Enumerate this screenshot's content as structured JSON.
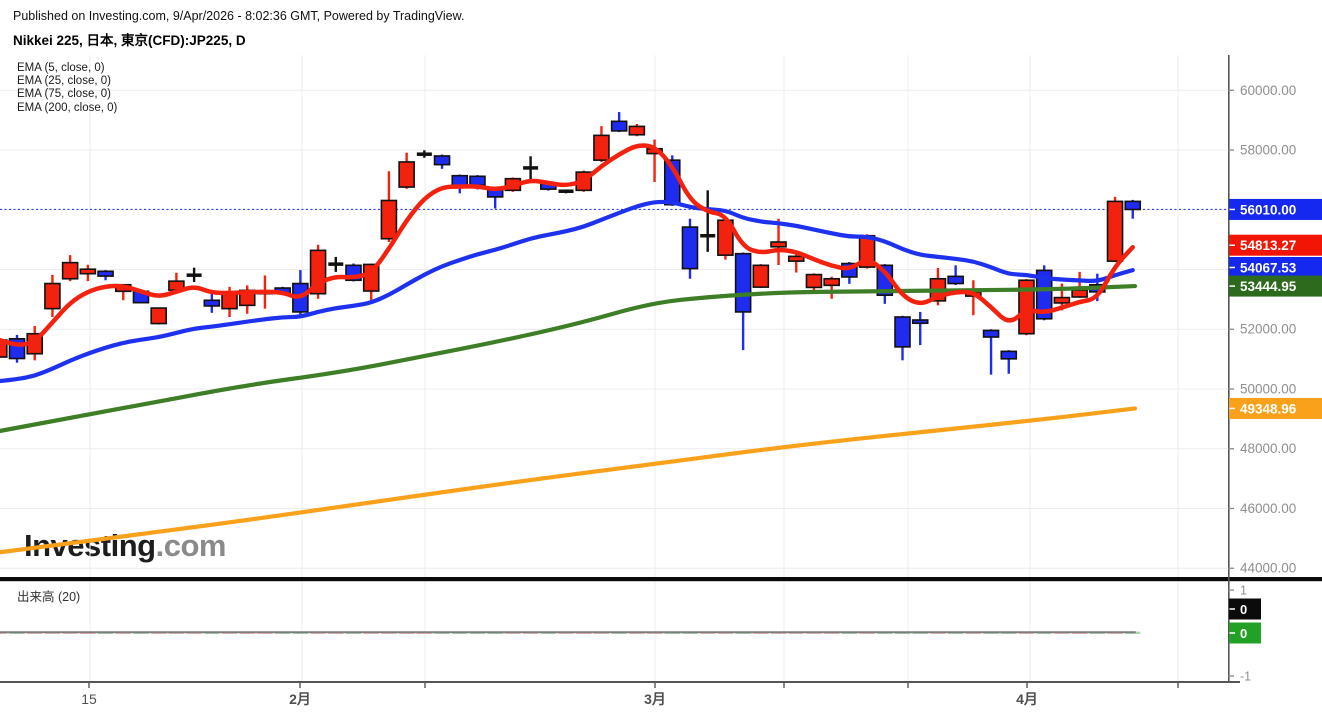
{
  "header": {
    "published_line": "Published on Investing.com, 9/Apr/2026 - 8:02:36 GMT, Powered by TradingView.",
    "title": "Nikkei 225, 日本, 東京(CFD):JP225, D"
  },
  "legend": {
    "items": [
      "EMA (5, close, 0)",
      "EMA (25, close, 0)",
      "EMA (75, close, 0)",
      "EMA (200, close, 0)"
    ]
  },
  "watermark": {
    "main": "Investing",
    "suffix": ".com"
  },
  "volume_pane": {
    "label": "出来高 (20)",
    "ticks": [
      {
        "value": 1,
        "label": "1"
      },
      {
        "value": -1,
        "label": "-1"
      }
    ],
    "badges": [
      {
        "label": "0",
        "color": "#0b0b0b"
      },
      {
        "label": "0",
        "color": "#23a126"
      }
    ]
  },
  "chart_data": {
    "type": "candlestick",
    "title": "Nikkei 225, 日本, 東京(CFD):JP225, D",
    "symbol": "JP225",
    "timeframe": "D",
    "x0": -0.7,
    "dx": 17.71,
    "ylim": [
      43707,
      61180
    ],
    "y_grid": [
      44000,
      46000,
      48000,
      50000,
      52000,
      54000,
      56000,
      58000,
      60000
    ],
    "price_axis": {
      "ticks": [
        {
          "value": 60000,
          "label": "60000.00"
        },
        {
          "value": 58000,
          "label": "58000.00"
        },
        {
          "value": 52000,
          "label": "52000.00"
        },
        {
          "value": 50000,
          "label": "50000.00"
        },
        {
          "value": 48000,
          "label": "48000.00"
        },
        {
          "value": 46000,
          "label": "46000.00"
        },
        {
          "value": 44000,
          "label": "44000.00"
        }
      ],
      "badges": [
        {
          "name": "current-price",
          "value": 56010.0,
          "label": "56010.00",
          "color": "#1428f0"
        },
        {
          "name": "ema-5",
          "value": 54813.27,
          "label": "54813.27",
          "color": "#f21505"
        },
        {
          "name": "ema-25",
          "value": 54067.53,
          "label": "54067.53",
          "color": "#1428f0"
        },
        {
          "name": "ema-75",
          "value": 53444.95,
          "label": "53444.95",
          "color": "#2d6a1e"
        },
        {
          "name": "ema-200",
          "value": 49348.96,
          "label": "49348.96",
          "color": "#f9a11b"
        }
      ]
    },
    "x_axis": {
      "labels": [
        {
          "x": 89,
          "label": "15",
          "bold": false
        },
        {
          "x": 300,
          "label": "2月",
          "bold": true
        },
        {
          "x": 655,
          "label": "3月",
          "bold": true
        },
        {
          "x": 1027,
          "label": "4月",
          "bold": true
        }
      ],
      "minor_ticks": [
        425,
        784,
        908,
        1178
      ],
      "grid": [
        90,
        302,
        425,
        655,
        784,
        908,
        1030,
        1178
      ]
    },
    "price_line": {
      "value": 56010.0,
      "label": "56010.00",
      "color": "#2b41f5"
    },
    "colors": {
      "up": "#f2220f",
      "down": "#1f2cf0",
      "neutral": "#111111",
      "border": "#111111"
    },
    "candles": [
      [
        51070,
        51700,
        51040,
        51640,
        "u"
      ],
      [
        51680,
        51810,
        50880,
        51020,
        "d"
      ],
      [
        51180,
        52110,
        50960,
        51850,
        "u"
      ],
      [
        52690,
        53820,
        52410,
        53530,
        "u"
      ],
      [
        53690,
        54480,
        53610,
        54230,
        "u"
      ],
      [
        53860,
        54160,
        53610,
        54010,
        "u"
      ],
      [
        53940,
        53980,
        53640,
        53780,
        "d"
      ],
      [
        53270,
        53500,
        52970,
        53490,
        "u"
      ],
      [
        53270,
        53290,
        52870,
        52890,
        "d"
      ],
      [
        52190,
        52730,
        52160,
        52710,
        "u"
      ],
      [
        53310,
        53890,
        53190,
        53610,
        "u"
      ],
      [
        53810,
        54060,
        53580,
        53810,
        "n"
      ],
      [
        52970,
        53190,
        52550,
        52780,
        "d"
      ],
      [
        52690,
        53420,
        52410,
        53190,
        "u"
      ],
      [
        52800,
        53470,
        52520,
        53300,
        "u"
      ],
      [
        53190,
        53800,
        52690,
        53290,
        "u"
      ],
      [
        53380,
        53420,
        53140,
        53190,
        "d"
      ],
      [
        53530,
        53980,
        52410,
        52580,
        "d"
      ],
      [
        53190,
        54830,
        53020,
        54640,
        "u"
      ],
      [
        54180,
        54420,
        53920,
        54180,
        "n"
      ],
      [
        54140,
        54200,
        53600,
        53640,
        "d"
      ],
      [
        53280,
        54200,
        52950,
        54170,
        "u"
      ],
      [
        55030,
        57290,
        54920,
        56310,
        "u"
      ],
      [
        56760,
        57910,
        56700,
        57600,
        "u"
      ],
      [
        57860,
        57990,
        57740,
        57860,
        "n"
      ],
      [
        57800,
        57850,
        57370,
        57510,
        "d"
      ],
      [
        57140,
        57180,
        56550,
        56800,
        "d"
      ],
      [
        57120,
        57160,
        56680,
        56820,
        "d"
      ],
      [
        56710,
        56760,
        56040,
        56430,
        "d"
      ],
      [
        56650,
        57080,
        56600,
        57040,
        "u"
      ],
      [
        57400,
        57790,
        57020,
        57400,
        "n"
      ],
      [
        56870,
        56920,
        56640,
        56690,
        "d"
      ],
      [
        56620,
        56680,
        56550,
        56620,
        "n"
      ],
      [
        56650,
        57310,
        56600,
        57260,
        "u"
      ],
      [
        57660,
        58800,
        57600,
        58490,
        "u"
      ],
      [
        58960,
        59270,
        58600,
        58640,
        "d"
      ],
      [
        58510,
        58870,
        58460,
        58790,
        "u"
      ],
      [
        57880,
        58350,
        56930,
        58040,
        "u"
      ],
      [
        57660,
        57820,
        56130,
        56170,
        "d"
      ],
      [
        55420,
        55700,
        53690,
        54030,
        "d"
      ],
      [
        55130,
        56650,
        54590,
        55130,
        "n"
      ],
      [
        54480,
        55680,
        54330,
        55650,
        "u"
      ],
      [
        54530,
        54570,
        51300,
        52580,
        "d"
      ],
      [
        53410,
        54180,
        53380,
        54140,
        "u"
      ],
      [
        54760,
        55700,
        54150,
        54920,
        "u"
      ],
      [
        54280,
        54590,
        53900,
        54440,
        "u"
      ],
      [
        53400,
        53870,
        53300,
        53830,
        "u"
      ],
      [
        53470,
        53760,
        53020,
        53690,
        "u"
      ],
      [
        54200,
        54250,
        53520,
        53750,
        "d"
      ],
      [
        54080,
        55180,
        54030,
        55130,
        "u"
      ],
      [
        54140,
        54180,
        52850,
        53140,
        "d"
      ],
      [
        52410,
        52450,
        50960,
        51410,
        "d"
      ],
      [
        52310,
        52580,
        51470,
        52200,
        "d"
      ],
      [
        52950,
        54050,
        52800,
        53690,
        "u"
      ],
      [
        53770,
        54140,
        53480,
        53530,
        "d"
      ],
      [
        53110,
        53640,
        52470,
        53250,
        "u"
      ],
      [
        51960,
        52000,
        50480,
        51740,
        "d"
      ],
      [
        51260,
        51300,
        50510,
        51010,
        "d"
      ],
      [
        51850,
        53680,
        51800,
        53640,
        "u"
      ],
      [
        53970,
        54140,
        52300,
        52350,
        "d"
      ],
      [
        52880,
        53530,
        52630,
        53060,
        "u"
      ],
      [
        53080,
        53920,
        53050,
        53310,
        "u"
      ],
      [
        53490,
        53860,
        52940,
        53250,
        "d"
      ],
      [
        54280,
        56430,
        54250,
        56280,
        "u"
      ],
      [
        56280,
        56330,
        55700,
        56010,
        "d"
      ]
    ],
    "ema_series": [
      {
        "name": "EMA 5",
        "period": 5,
        "color": "#f2220f",
        "mode": "compute",
        "width": 4.5,
        "badge": "54813.27"
      },
      {
        "name": "EMA 25",
        "period": 25,
        "color": "#1d31ee",
        "mode": "compute",
        "seed": 50150,
        "width": 4.2,
        "badge": "54067.53"
      },
      {
        "name": "EMA 75",
        "period": 75,
        "color": "#3d7e27",
        "mode": "points",
        "width": 4.2,
        "badge": "53444.95",
        "points": [
          [
            -1,
            48590
          ],
          [
            120,
            49330
          ],
          [
            240,
            50100
          ],
          [
            340,
            50560
          ],
          [
            420,
            51070
          ],
          [
            500,
            51600
          ],
          [
            580,
            52200
          ],
          [
            650,
            52870
          ],
          [
            710,
            53090
          ],
          [
            780,
            53230
          ],
          [
            860,
            53270
          ],
          [
            960,
            53300
          ],
          [
            1060,
            53340
          ],
          [
            1135,
            53445
          ]
        ]
      },
      {
        "name": "EMA 200",
        "period": 200,
        "color": "#f9a11b",
        "mode": "points",
        "width": 4.2,
        "badge": "49348.96",
        "points": [
          [
            -1,
            44530
          ],
          [
            120,
            45050
          ],
          [
            240,
            45580
          ],
          [
            360,
            46150
          ],
          [
            500,
            46820
          ],
          [
            655,
            47500
          ],
          [
            800,
            48130
          ],
          [
            950,
            48660
          ],
          [
            1045,
            48990
          ],
          [
            1135,
            49349
          ]
        ]
      }
    ],
    "volume": {
      "all_values_zero": true,
      "ma_period": 20,
      "ma_color": "#7d7d7d",
      "up_color": "#f0b9b4",
      "down_color": "#a8d8a6"
    }
  }
}
